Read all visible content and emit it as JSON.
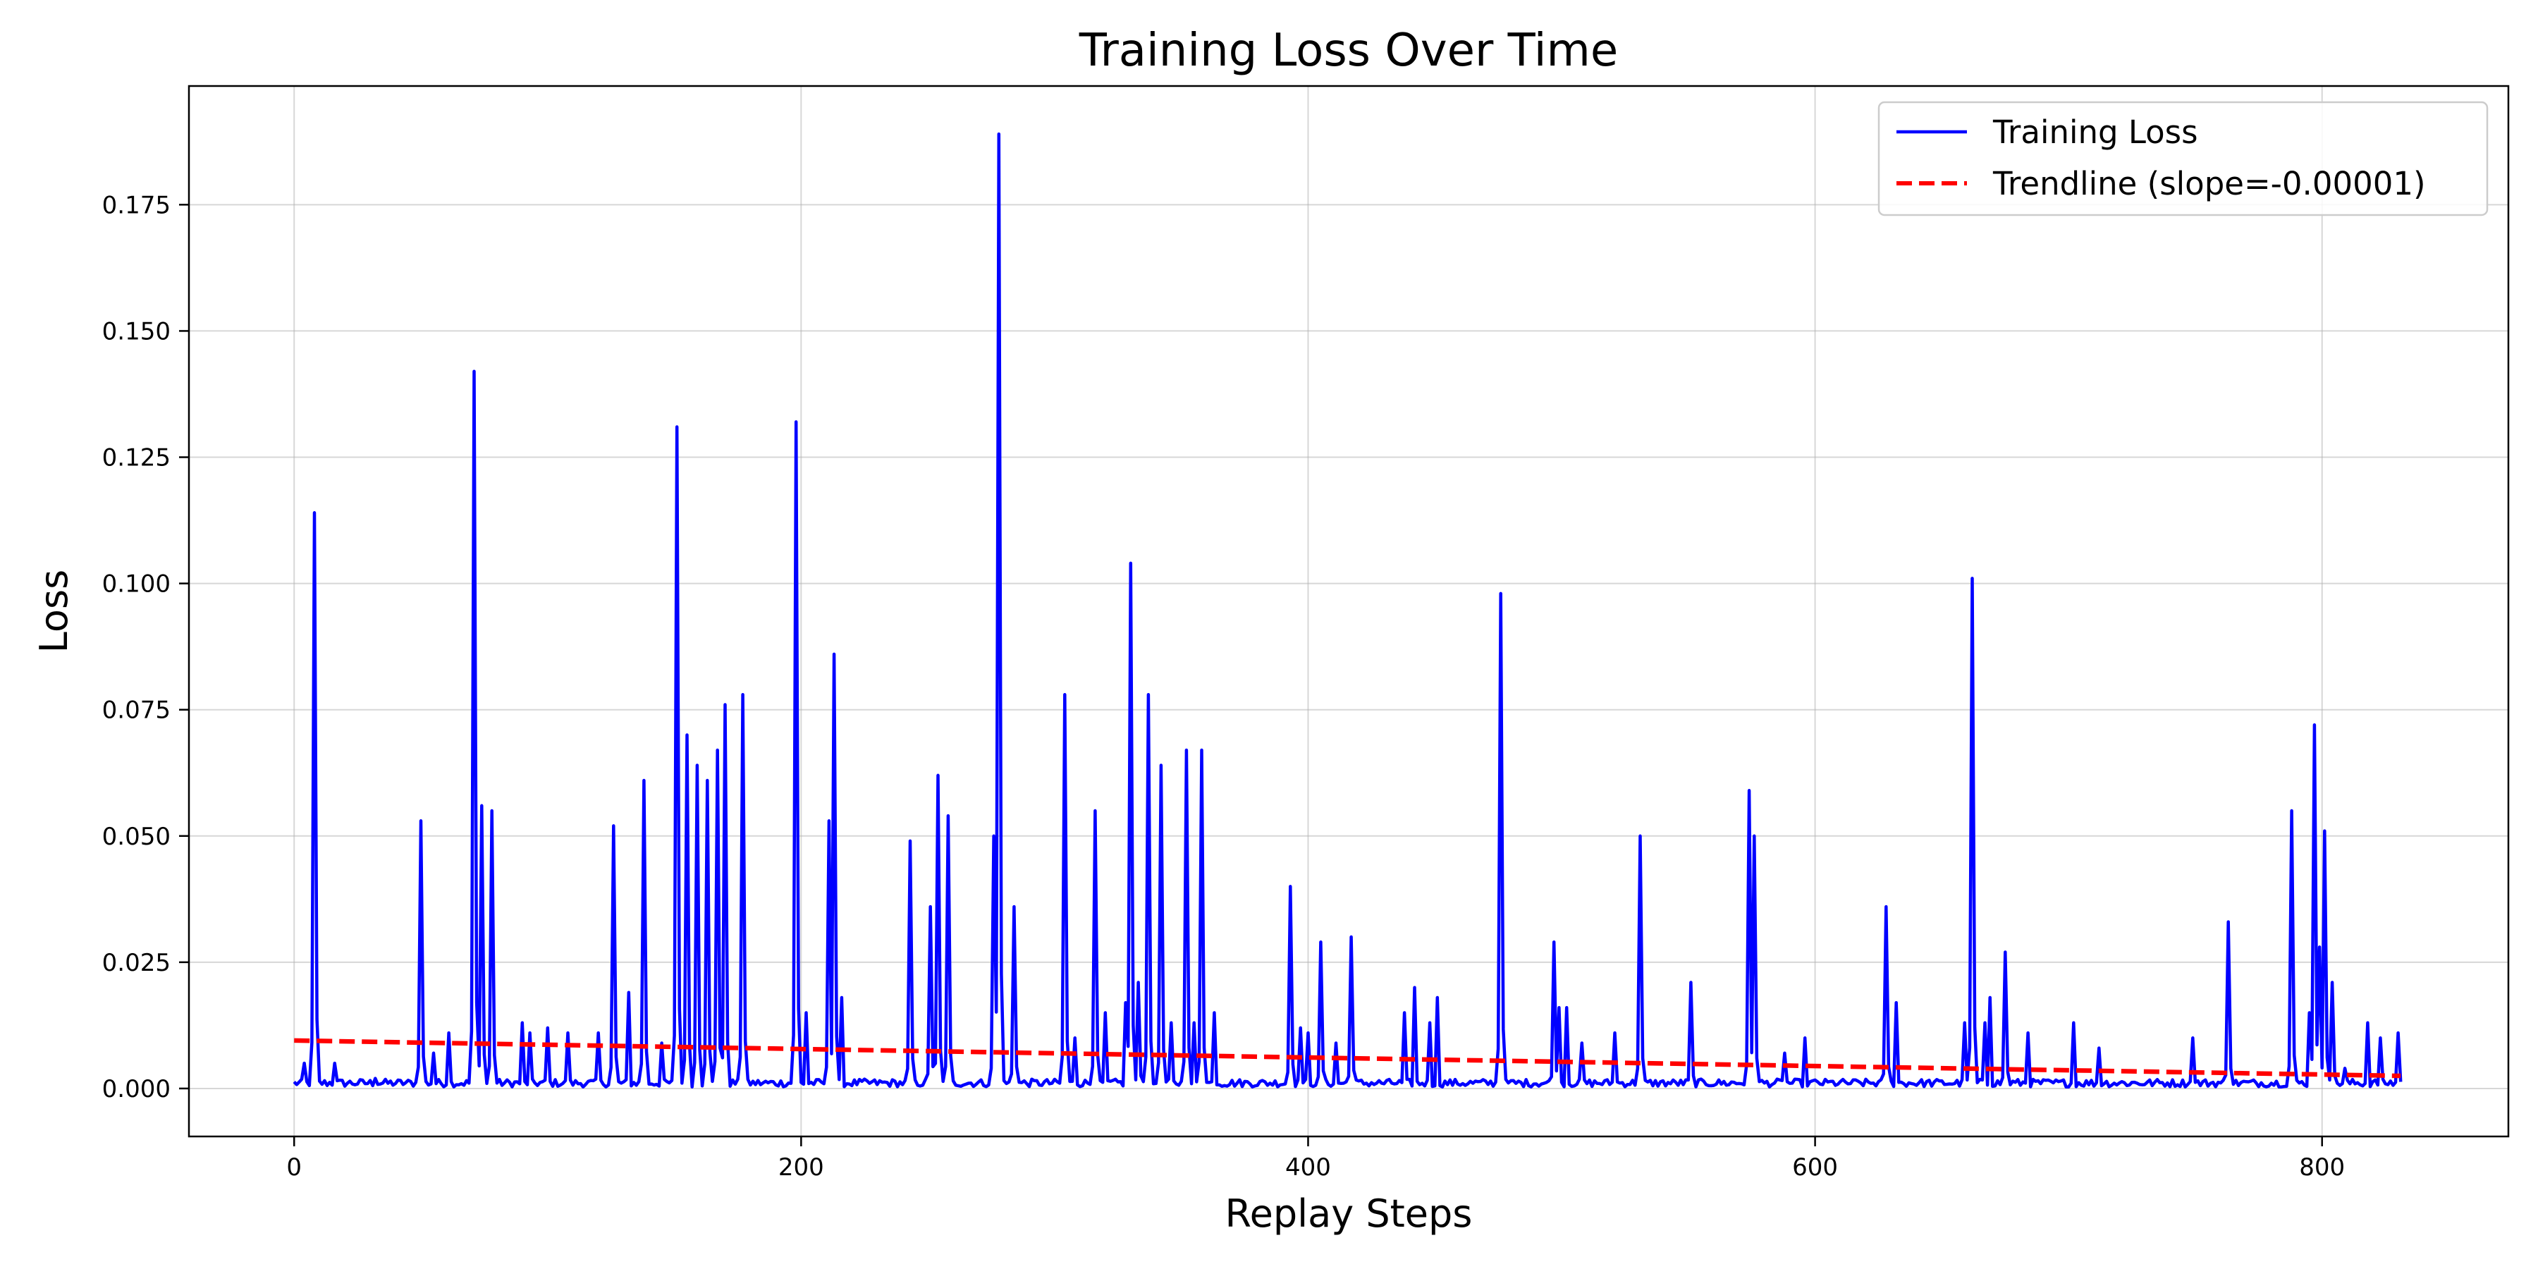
{
  "chart_data": {
    "type": "line",
    "title": "Training Loss Over Time",
    "xlabel": "Replay Steps",
    "ylabel": "Loss",
    "xlim": [
      -41.5,
      873.5
    ],
    "ylim": [
      -0.0095,
      0.1985
    ],
    "x_ticks": [
      0,
      200,
      400,
      600,
      800
    ],
    "y_ticks": [
      0.0,
      0.025,
      0.05,
      0.075,
      0.1,
      0.125,
      0.15,
      0.175
    ],
    "x_tick_labels": [
      "0",
      "200",
      "400",
      "600",
      "800"
    ],
    "y_tick_labels": [
      "0.000",
      "0.025",
      "0.050",
      "0.075",
      "0.100",
      "0.125",
      "0.150",
      "0.175"
    ],
    "grid": true,
    "legend": {
      "position": "top-right",
      "entries": [
        "Training Loss",
        "Trendline (slope=-0.00001)"
      ]
    },
    "series": [
      {
        "name": "Training Loss",
        "color": "#0000ff",
        "style": "solid",
        "n_points": 832,
        "baseline": 0.0012,
        "spikes": [
          [
            4,
            0.005
          ],
          [
            8,
            0.114
          ],
          [
            16,
            0.005
          ],
          [
            32,
            0.002
          ],
          [
            50,
            0.053
          ],
          [
            55,
            0.007
          ],
          [
            61,
            0.011
          ],
          [
            71,
            0.142
          ],
          [
            74,
            0.056
          ],
          [
            78,
            0.055
          ],
          [
            90,
            0.013
          ],
          [
            93,
            0.011
          ],
          [
            100,
            0.012
          ],
          [
            108,
            0.011
          ],
          [
            120,
            0.011
          ],
          [
            126,
            0.052
          ],
          [
            132,
            0.019
          ],
          [
            138,
            0.061
          ],
          [
            145,
            0.009
          ],
          [
            151,
            0.131
          ],
          [
            155,
            0.07
          ],
          [
            159,
            0.064
          ],
          [
            163,
            0.061
          ],
          [
            167,
            0.067
          ],
          [
            170,
            0.076
          ],
          [
            177,
            0.078
          ],
          [
            198,
            0.132
          ],
          [
            202,
            0.015
          ],
          [
            211,
            0.053
          ],
          [
            213,
            0.086
          ],
          [
            216,
            0.018
          ],
          [
            243,
            0.049
          ],
          [
            251,
            0.036
          ],
          [
            254,
            0.062
          ],
          [
            258,
            0.054
          ],
          [
            276,
            0.05
          ],
          [
            278,
            0.189
          ],
          [
            284,
            0.036
          ],
          [
            304,
            0.078
          ],
          [
            308,
            0.01
          ],
          [
            316,
            0.055
          ],
          [
            320,
            0.015
          ],
          [
            328,
            0.017
          ],
          [
            330,
            0.104
          ],
          [
            333,
            0.021
          ],
          [
            337,
            0.078
          ],
          [
            342,
            0.064
          ],
          [
            346,
            0.013
          ],
          [
            352,
            0.067
          ],
          [
            355,
            0.013
          ],
          [
            358,
            0.067
          ],
          [
            363,
            0.015
          ],
          [
            393,
            0.04
          ],
          [
            397,
            0.012
          ],
          [
            400,
            0.011
          ],
          [
            405,
            0.029
          ],
          [
            411,
            0.009
          ],
          [
            417,
            0.03
          ],
          [
            438,
            0.015
          ],
          [
            442,
            0.02
          ],
          [
            448,
            0.013
          ],
          [
            451,
            0.018
          ],
          [
            476,
            0.098
          ],
          [
            497,
            0.029
          ],
          [
            499,
            0.016
          ],
          [
            502,
            0.016
          ],
          [
            508,
            0.009
          ],
          [
            521,
            0.011
          ],
          [
            531,
            0.05
          ],
          [
            551,
            0.021
          ],
          [
            574,
            0.059
          ],
          [
            576,
            0.05
          ],
          [
            588,
            0.007
          ],
          [
            596,
            0.01
          ],
          [
            628,
            0.036
          ],
          [
            632,
            0.017
          ],
          [
            659,
            0.013
          ],
          [
            662,
            0.101
          ],
          [
            667,
            0.013
          ],
          [
            669,
            0.018
          ],
          [
            675,
            0.027
          ],
          [
            684,
            0.011
          ],
          [
            702,
            0.013
          ],
          [
            712,
            0.008
          ],
          [
            749,
            0.01
          ],
          [
            763,
            0.033
          ],
          [
            788,
            0.055
          ],
          [
            795,
            0.015
          ],
          [
            797,
            0.072
          ],
          [
            799,
            0.028
          ],
          [
            801,
            0.051
          ],
          [
            804,
            0.021
          ],
          [
            809,
            0.004
          ],
          [
            818,
            0.013
          ],
          [
            823,
            0.01
          ],
          [
            830,
            0.011
          ]
        ]
      },
      {
        "name": "Trendline (slope=-0.00001)",
        "color": "#ff0000",
        "style": "dashed",
        "x": [
          0,
          831
        ],
        "y": [
          0.0095,
          0.0025
        ]
      }
    ]
  }
}
